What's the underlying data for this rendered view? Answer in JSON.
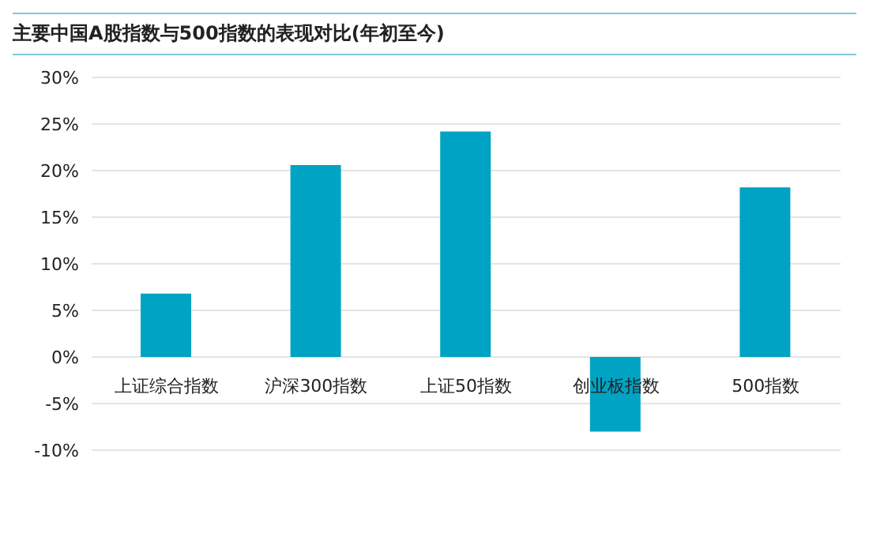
{
  "chart_data": {
    "type": "bar",
    "title": "主要中国A股指数与500指数的表现对比(年初至今)",
    "categories": [
      "上证综合指数",
      "沪深300指数",
      "上证50指数",
      "创业板指数",
      "500指数"
    ],
    "values": [
      6.8,
      20.6,
      24.2,
      -8.0,
      18.2
    ],
    "color": "#00a3c4",
    "ylim": [
      -10,
      30
    ],
    "yticks": [
      {
        "value": -10,
        "label": "-10%"
      },
      {
        "value": -5,
        "label": "-5%"
      },
      {
        "value": 0,
        "label": "0%"
      },
      {
        "value": 5,
        "label": "5%"
      },
      {
        "value": 10,
        "label": "10%"
      },
      {
        "value": 15,
        "label": "15%"
      },
      {
        "value": 20,
        "label": "20%"
      },
      {
        "value": 25,
        "label": "25%"
      },
      {
        "value": 30,
        "label": "30%"
      }
    ],
    "grid": "y"
  }
}
